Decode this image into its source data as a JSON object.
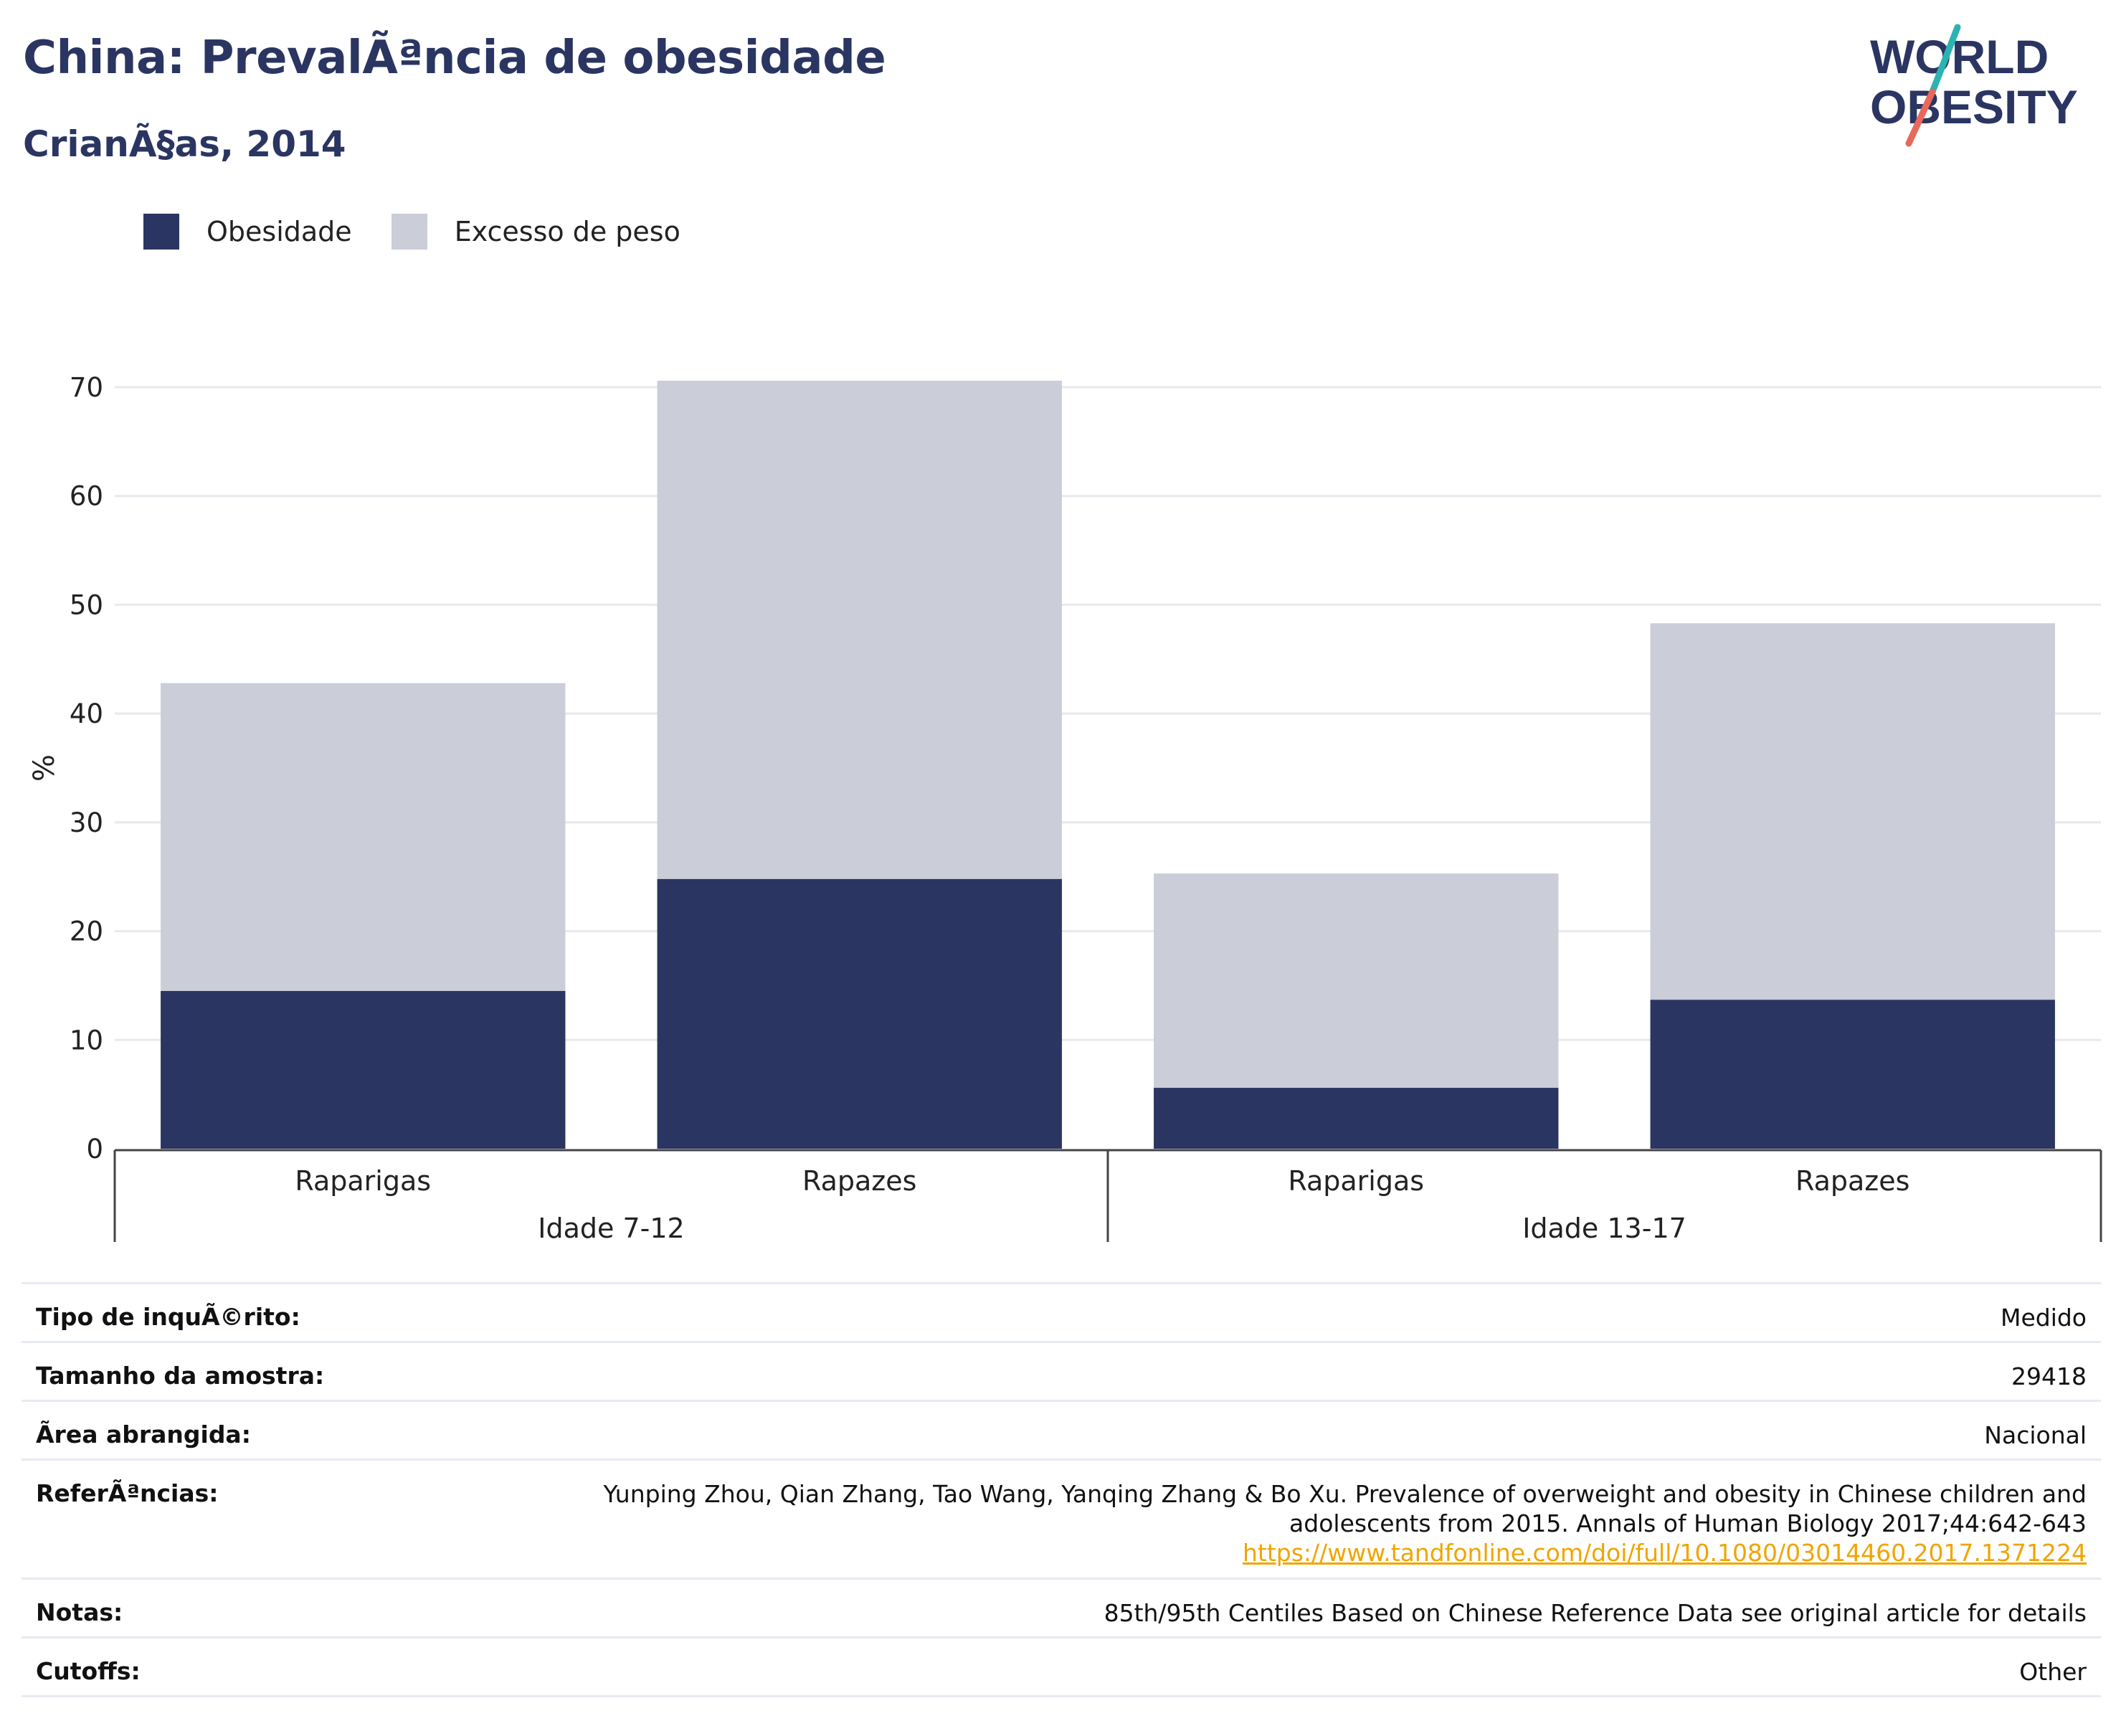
{
  "header": {
    "title": "China: PrevalÃªncia de obesidade",
    "subtitle": "CrianÃ§as, 2014"
  },
  "logo": {
    "line1": "WORLD",
    "line2": "OBESITY",
    "colors": {
      "text": "#2b3562",
      "slash_top": "#2bb3b1",
      "slash_bottom": "#e8685a"
    }
  },
  "legend": {
    "items": [
      {
        "label": "Obesidade",
        "color": "#2b3562"
      },
      {
        "label": "Excesso de peso",
        "color": "#cbcdd9"
      }
    ]
  },
  "chart_data": {
    "type": "bar",
    "stacked": true,
    "ylabel": "%",
    "ylim": [
      0,
      70
    ],
    "yticks": [
      0,
      10,
      20,
      30,
      40,
      50,
      60,
      70
    ],
    "grid": true,
    "categories": [
      "Raparigas",
      "Rapazes",
      "Raparigas",
      "Rapazes"
    ],
    "groups": [
      {
        "label": "Idade 7-12",
        "categories": [
          0,
          1
        ]
      },
      {
        "label": "Idade 13-17",
        "categories": [
          2,
          3
        ]
      }
    ],
    "series": [
      {
        "name": "Obesidade",
        "color": "#2b3562",
        "values": [
          14.5,
          24.8,
          5.6,
          13.7
        ]
      },
      {
        "name": "Excesso de peso",
        "color": "#cbcdd9",
        "values": [
          28.3,
          45.8,
          19.7,
          34.6
        ]
      }
    ]
  },
  "info_table": {
    "rows": [
      {
        "key": "Tipo de inquÃ©rito:",
        "value": "Medido"
      },
      {
        "key": "Tamanho da amostra:",
        "value": "29418"
      },
      {
        "key": "Ãrea abrangida:",
        "value": "Nacional"
      },
      {
        "key": "ReferÃªncias:",
        "lines": [
          "Yunping Zhou, Qian Zhang, Tao Wang, Yanqing Zhang & Bo Xu. Prevalence of overweight and obesity in Chinese children and",
          "adolescents from 2015. Annals of Human Biology 2017;44:642-643"
        ],
        "link": "https://www.tandfonline.com/doi/full/10.1080/03014460.2017.1371224"
      },
      {
        "key": "Notas:",
        "value": "85th/95th Centiles Based on Chinese Reference Data see original article for details"
      },
      {
        "key": "Cutoffs:",
        "value": "Other"
      }
    ]
  }
}
